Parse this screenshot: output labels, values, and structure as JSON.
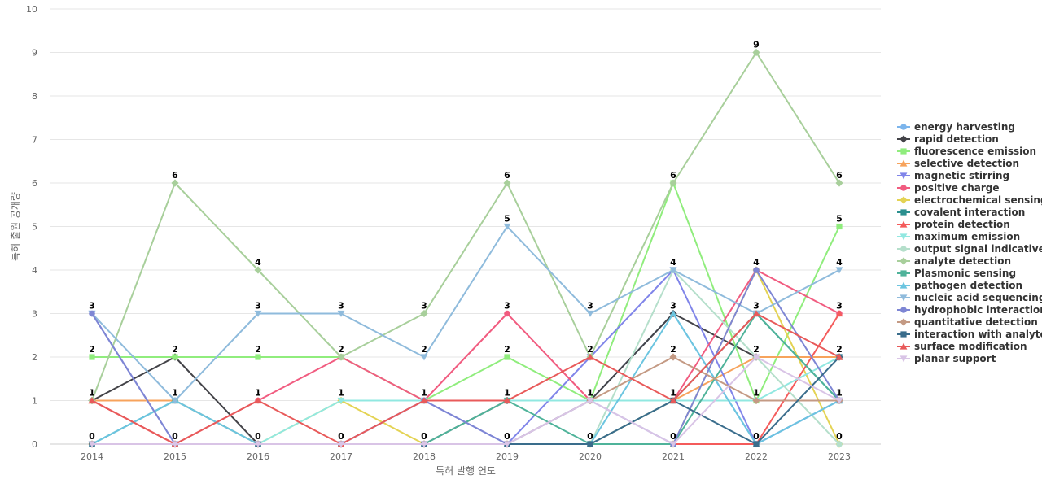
{
  "chart_data": {
    "type": "line",
    "title": "",
    "xlabel": "특허 발행 연도",
    "ylabel": "특허 출원 공개량",
    "ylim": [
      0,
      10
    ],
    "yticks": [
      0,
      1,
      2,
      3,
      4,
      5,
      6,
      7,
      8,
      9,
      10
    ],
    "categories": [
      "2014",
      "2015",
      "2016",
      "2017",
      "2018",
      "2019",
      "2020",
      "2021",
      "2022",
      "2023"
    ],
    "legend_position": "right",
    "grid": true,
    "series": [
      {
        "name": "energy harvesting",
        "color": "#7cb5ec",
        "marker": "circle",
        "values": [
          0,
          1,
          0,
          0,
          0,
          0,
          1,
          3,
          0,
          1
        ]
      },
      {
        "name": "rapid detection",
        "color": "#434348",
        "marker": "diamond",
        "values": [
          1,
          2,
          0,
          0,
          0,
          1,
          1,
          3,
          2,
          2
        ]
      },
      {
        "name": "fluorescence emission",
        "color": "#90ed7d",
        "marker": "square",
        "values": [
          2,
          2,
          2,
          2,
          1,
          2,
          1,
          6,
          1,
          5
        ]
      },
      {
        "name": "selective detection",
        "color": "#f7a35c",
        "marker": "triangle",
        "values": [
          1,
          1,
          0,
          0,
          0,
          0,
          0,
          1,
          2,
          2
        ]
      },
      {
        "name": "magnetic stirring",
        "color": "#8085e9",
        "marker": "triangle-down",
        "values": [
          3,
          0,
          0,
          0,
          1,
          0,
          2,
          4,
          0,
          1
        ]
      },
      {
        "name": "positive charge",
        "color": "#f15c80",
        "marker": "circle",
        "values": [
          1,
          0,
          1,
          2,
          1,
          3,
          1,
          1,
          4,
          3
        ]
      },
      {
        "name": "electrochemical sensing",
        "color": "#e4d354",
        "marker": "diamond",
        "values": [
          0,
          0,
          0,
          1,
          0,
          0,
          0,
          0,
          4,
          0
        ]
      },
      {
        "name": "covalent interaction",
        "color": "#2b908f",
        "marker": "square",
        "values": [
          0,
          0,
          0,
          0,
          0,
          0,
          0,
          1,
          3,
          1
        ]
      },
      {
        "name": "protein detection",
        "color": "#f45b5b",
        "marker": "triangle",
        "values": [
          1,
          0,
          0,
          0,
          0,
          0,
          0,
          0,
          0,
          3
        ]
      },
      {
        "name": "maximum emission",
        "color": "#91e8e1",
        "marker": "triangle-down",
        "values": [
          0,
          0,
          0,
          1,
          1,
          1,
          1,
          1,
          1,
          2
        ]
      },
      {
        "name": "output signal indicative",
        "color": "#b5dfcb",
        "marker": "circle",
        "values": [
          0,
          0,
          0,
          0,
          0,
          0,
          0,
          4,
          2,
          0
        ]
      },
      {
        "name": "analyte detection",
        "color": "#a8cf9b",
        "marker": "diamond",
        "values": [
          1,
          6,
          4,
          2,
          3,
          6,
          2,
          6,
          9,
          6
        ]
      },
      {
        "name": "Plasmonic sensing",
        "color": "#4fb39a",
        "marker": "square",
        "values": [
          0,
          1,
          0,
          0,
          0,
          1,
          0,
          0,
          3,
          1
        ]
      },
      {
        "name": "pathogen detection",
        "color": "#6cc5e0",
        "marker": "triangle",
        "values": [
          0,
          1,
          0,
          0,
          0,
          0,
          0,
          3,
          0,
          1
        ]
      },
      {
        "name": "nucleic acid sequencing",
        "color": "#8fbbdc",
        "marker": "triangle-down",
        "values": [
          3,
          1,
          3,
          3,
          2,
          5,
          3,
          4,
          3,
          4
        ]
      },
      {
        "name": "hydrophobic interaction",
        "color": "#7e86d4",
        "marker": "circle",
        "values": [
          3,
          0,
          0,
          0,
          1,
          0,
          1,
          0,
          4,
          1
        ]
      },
      {
        "name": "quantitative detection",
        "color": "#c49a84",
        "marker": "diamond",
        "values": [
          0,
          0,
          0,
          0,
          0,
          0,
          1,
          2,
          1,
          1
        ]
      },
      {
        "name": "interaction with analyte",
        "color": "#3a6d8c",
        "marker": "square",
        "values": [
          0,
          0,
          0,
          0,
          0,
          0,
          0,
          1,
          0,
          2
        ]
      },
      {
        "name": "surface modification",
        "color": "#e85a5a",
        "marker": "triangle",
        "values": [
          1,
          0,
          1,
          0,
          1,
          1,
          2,
          1,
          3,
          2
        ]
      },
      {
        "name": "planar support",
        "color": "#d9c4e6",
        "marker": "triangle-down",
        "values": [
          0,
          0,
          0,
          0,
          0,
          0,
          1,
          0,
          2,
          1
        ]
      }
    ],
    "point_labels": [
      {
        "category_index": 0,
        "value": 3
      },
      {
        "category_index": 0,
        "value": 2
      },
      {
        "category_index": 0,
        "value": 1
      },
      {
        "category_index": 0,
        "value": 0
      },
      {
        "category_index": 1,
        "value": 6
      },
      {
        "category_index": 1,
        "value": 2
      },
      {
        "category_index": 1,
        "value": 1
      },
      {
        "category_index": 1,
        "value": 0
      },
      {
        "category_index": 2,
        "value": 4
      },
      {
        "category_index": 2,
        "value": 3
      },
      {
        "category_index": 2,
        "value": 2
      },
      {
        "category_index": 2,
        "value": 1
      },
      {
        "category_index": 2,
        "value": 0
      },
      {
        "category_index": 3,
        "value": 3
      },
      {
        "category_index": 3,
        "value": 2
      },
      {
        "category_index": 3,
        "value": 1
      },
      {
        "category_index": 3,
        "value": 0
      },
      {
        "category_index": 4,
        "value": 3
      },
      {
        "category_index": 4,
        "value": 2
      },
      {
        "category_index": 4,
        "value": 1
      },
      {
        "category_index": 4,
        "value": 0
      },
      {
        "category_index": 5,
        "value": 6
      },
      {
        "category_index": 5,
        "value": 5
      },
      {
        "category_index": 5,
        "value": 3
      },
      {
        "category_index": 5,
        "value": 2
      },
      {
        "category_index": 5,
        "value": 1
      },
      {
        "category_index": 5,
        "value": 0
      },
      {
        "category_index": 6,
        "value": 3
      },
      {
        "category_index": 6,
        "value": 2
      },
      {
        "category_index": 6,
        "value": 1
      },
      {
        "category_index": 6,
        "value": 0
      },
      {
        "category_index": 7,
        "value": 6
      },
      {
        "category_index": 7,
        "value": 4
      },
      {
        "category_index": 7,
        "value": 3
      },
      {
        "category_index": 7,
        "value": 2
      },
      {
        "category_index": 7,
        "value": 1
      },
      {
        "category_index": 7,
        "value": 0
      },
      {
        "category_index": 8,
        "value": 9
      },
      {
        "category_index": 8,
        "value": 4
      },
      {
        "category_index": 8,
        "value": 3
      },
      {
        "category_index": 8,
        "value": 2
      },
      {
        "category_index": 8,
        "value": 1
      },
      {
        "category_index": 8,
        "value": 0
      },
      {
        "category_index": 9,
        "value": 6
      },
      {
        "category_index": 9,
        "value": 5
      },
      {
        "category_index": 9,
        "value": 4
      },
      {
        "category_index": 9,
        "value": 3
      },
      {
        "category_index": 9,
        "value": 2
      },
      {
        "category_index": 9,
        "value": 1
      },
      {
        "category_index": 9,
        "value": 0
      }
    ]
  }
}
